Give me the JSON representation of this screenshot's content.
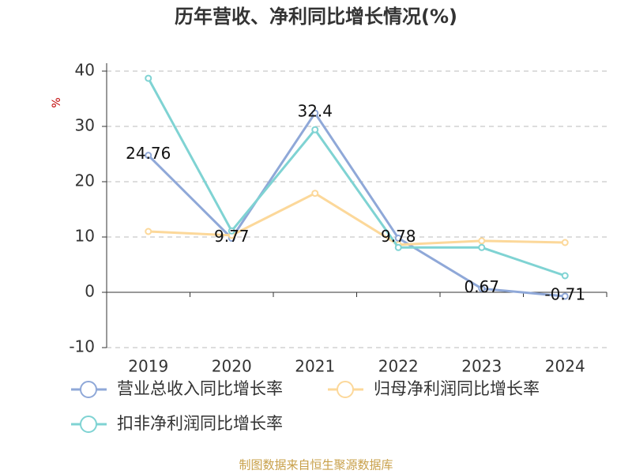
{
  "chart_data": {
    "type": "line",
    "title": "历年营收、净利同比增长情况(%)",
    "y_label": "%",
    "categories": [
      "2019",
      "2020",
      "2021",
      "2022",
      "2023",
      "2024"
    ],
    "series": [
      {
        "name": "营业总收入同比增长率",
        "color": "#8fa8d8",
        "values": [
          24.76,
          9.77,
          32.4,
          9.78,
          0.67,
          -0.71
        ],
        "show_labels": true
      },
      {
        "name": "归母净利润同比增长率",
        "color": "#fcd89a",
        "values": [
          11.0,
          10.3,
          17.9,
          8.6,
          9.3,
          9.0
        ],
        "show_labels": false
      },
      {
        "name": "扣非净利润同比增长率",
        "color": "#7fd3d3",
        "values": [
          38.7,
          11.1,
          29.4,
          8.1,
          8.1,
          3.0
        ],
        "show_labels": false
      }
    ],
    "ylim": [
      -10,
      40
    ],
    "yticks": [
      40,
      30,
      20,
      10,
      0,
      -10
    ],
    "grid": true,
    "source": "制图数据来自恒生聚源数据库"
  }
}
